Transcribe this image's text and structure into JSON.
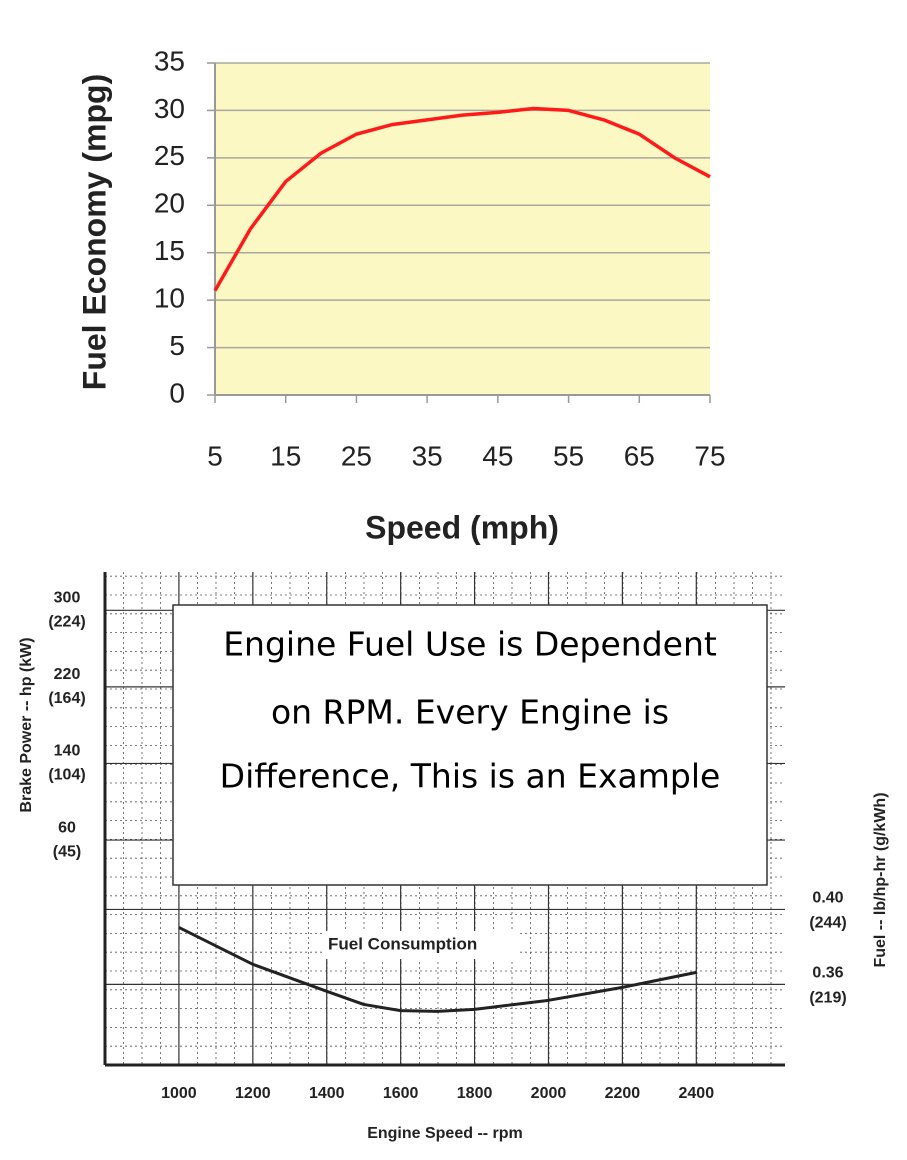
{
  "chart_data": [
    {
      "type": "line",
      "x_label": "Speed (mph)",
      "y_label": "Fuel Economy (mpg)",
      "x": [
        5,
        10,
        15,
        20,
        25,
        30,
        35,
        40,
        45,
        50,
        55,
        60,
        65,
        70,
        75
      ],
      "series": [
        {
          "color": "#ff1a1a",
          "values": [
            11,
            17.5,
            22.5,
            25.5,
            27.5,
            28.5,
            29,
            29.5,
            29.8,
            30.2,
            30,
            29,
            27.5,
            25,
            23
          ]
        }
      ],
      "xlim": [
        5,
        75
      ],
      "ylim": [
        0,
        35
      ],
      "xticks": [
        5,
        15,
        25,
        35,
        45,
        55,
        65,
        75
      ],
      "yticks": [
        0,
        5,
        10,
        15,
        20,
        25,
        30,
        35
      ],
      "grid": true,
      "background": "#fcf8c4"
    },
    {
      "type": "line",
      "x_label": "Engine Speed -- rpm",
      "y_label": "Brake Power -- hp (kW)",
      "y2_label": "Fuel -- lb/hp-hr (g/kWh)",
      "annotation": [
        "Engine Fuel Use is Dependent",
        "on RPM.  Every Engine is",
        "Difference, This is an Example"
      ],
      "x": [
        1000,
        1200,
        1400,
        1500,
        1600,
        1700,
        1800,
        2000,
        2200,
        2400
      ],
      "series": [
        {
          "name": "Fuel Consumption",
          "color": "#222222",
          "axis": "y2",
          "values": [
            0.3904,
            0.3707,
            0.3563,
            0.3493,
            0.346,
            0.3456,
            0.3467,
            0.3515,
            0.3584,
            0.3664
          ]
        }
      ],
      "xlim": [
        800,
        2640
      ],
      "ylim": [
        -175,
        340
      ],
      "y2lim": [
        0.317,
        0.58
      ],
      "xticks": [
        1000,
        1200,
        1400,
        1600,
        1800,
        2000,
        2200,
        2400
      ],
      "yticks": [
        {
          "value": 300,
          "label": "300",
          "label_kw": "(224)"
        },
        {
          "value": 220,
          "label": "220",
          "label_kw": "(164)"
        },
        {
          "value": 140,
          "label": "140",
          "label_kw": "(104)"
        },
        {
          "value": 60,
          "label": "60",
          "label_kw": "(45)"
        }
      ],
      "y2ticks": [
        {
          "value": 0.4,
          "label": "0.40",
          "label_gkwh": "(244)"
        },
        {
          "value": 0.36,
          "label": "0.36",
          "label_gkwh": "(219)"
        }
      ],
      "grid": true
    }
  ]
}
